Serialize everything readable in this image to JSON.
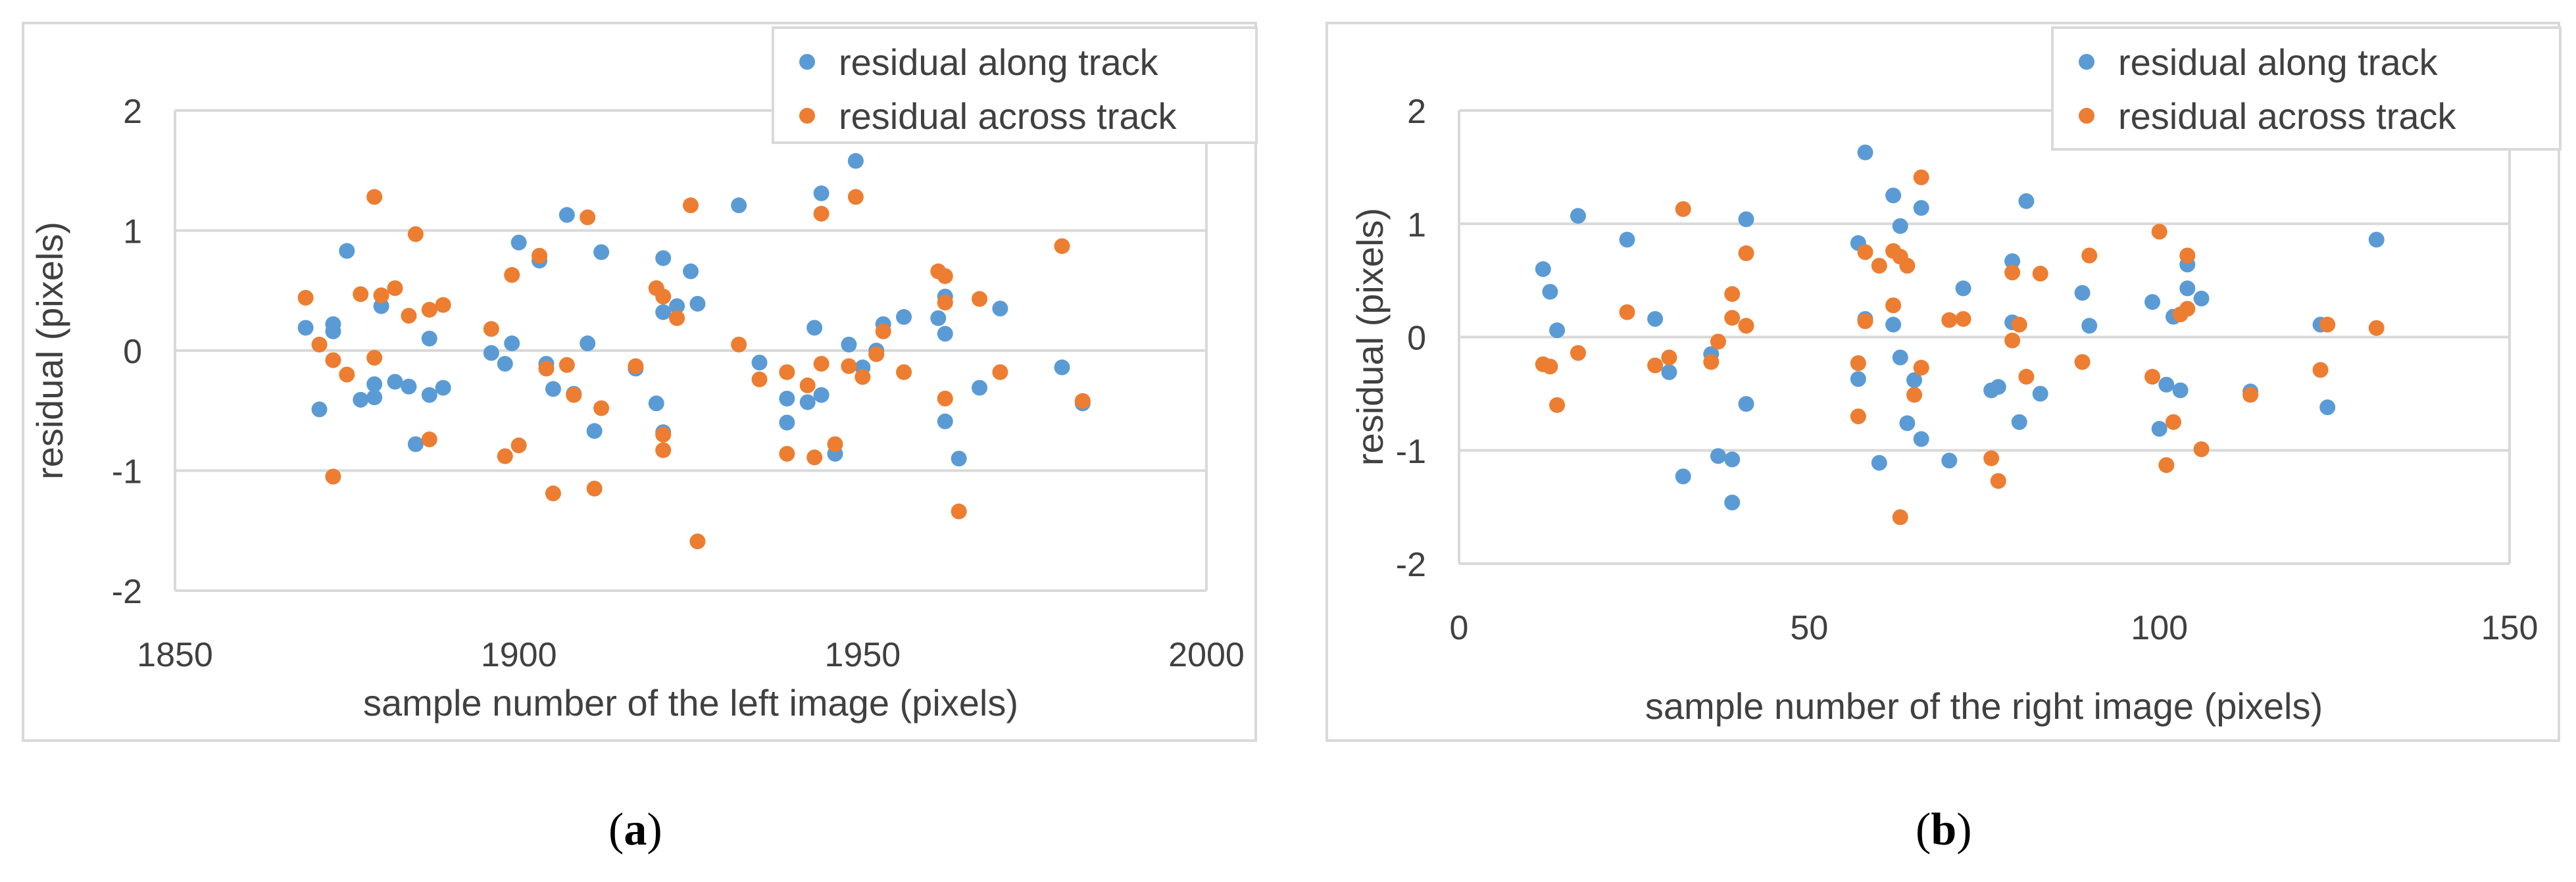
{
  "captions": {
    "a_letter": "a",
    "b_letter": "b"
  },
  "colors": {
    "along": "#5b9bd5",
    "across": "#ed7d31",
    "grid": "#d9d9d9",
    "text": "#404040"
  },
  "chart_data": [
    {
      "type": "scatter",
      "panel": "a",
      "xlabel": "sample number of the left image (pixels)",
      "ylabel": "residual (pixels)",
      "xlim": [
        1850,
        2000
      ],
      "ylim": [
        -2,
        2
      ],
      "xticks": [
        1850,
        1900,
        1950,
        2000
      ],
      "xtick_labels": [
        "1850",
        "1900",
        "1950",
        "2000"
      ],
      "yticks": [
        -2,
        -1,
        0,
        1,
        2
      ],
      "ytick_labels": [
        "-2",
        "-1",
        "0",
        "1",
        "2"
      ],
      "grid": true,
      "legend_position": "top-right",
      "series": [
        {
          "name": "residual along track",
          "points": [
            [
              1869,
              0.19
            ],
            [
              1871,
              -0.49
            ],
            [
              1873,
              0.22
            ],
            [
              1873,
              0.16
            ],
            [
              1875,
              0.83
            ],
            [
              1877,
              -0.41
            ],
            [
              1879,
              -0.28
            ],
            [
              1879,
              -0.39
            ],
            [
              1880,
              0.37
            ],
            [
              1882,
              -0.26
            ],
            [
              1884,
              -0.3
            ],
            [
              1885,
              -0.78
            ],
            [
              1887,
              0.1
            ],
            [
              1887,
              -0.37
            ],
            [
              1889,
              -0.31
            ],
            [
              1896,
              -0.02
            ],
            [
              1898,
              -0.11
            ],
            [
              1899,
              0.06
            ],
            [
              1900,
              0.9
            ],
            [
              1903,
              0.75
            ],
            [
              1904,
              -0.11
            ],
            [
              1905,
              -0.32
            ],
            [
              1907,
              1.13
            ],
            [
              1908,
              -0.36
            ],
            [
              1910,
              0.06
            ],
            [
              1911,
              -0.67
            ],
            [
              1912,
              0.82
            ],
            [
              1917,
              -0.15
            ],
            [
              1920,
              -0.44
            ],
            [
              1921,
              0.32
            ],
            [
              1921,
              0.77
            ],
            [
              1921,
              -0.68
            ],
            [
              1923,
              0.37
            ],
            [
              1925,
              0.66
            ],
            [
              1926,
              0.39
            ],
            [
              1932,
              1.21
            ],
            [
              1935,
              -0.1
            ],
            [
              1939,
              -0.6
            ],
            [
              1939,
              -0.4
            ],
            [
              1942,
              -0.43
            ],
            [
              1943,
              0.19
            ],
            [
              1944,
              1.31
            ],
            [
              1944,
              -0.37
            ],
            [
              1946,
              -0.86
            ],
            [
              1948,
              0.05
            ],
            [
              1949,
              1.58
            ],
            [
              1950,
              -0.14
            ],
            [
              1952,
              0.0
            ],
            [
              1953,
              0.22
            ],
            [
              1956,
              0.28
            ],
            [
              1961,
              0.27
            ],
            [
              1962,
              0.45
            ],
            [
              1962,
              0.14
            ],
            [
              1962,
              -0.59
            ],
            [
              1964,
              -0.9
            ],
            [
              1967,
              -0.31
            ],
            [
              1970,
              0.35
            ],
            [
              1979,
              -0.14
            ],
            [
              1982,
              -0.44
            ]
          ]
        },
        {
          "name": "residual across track",
          "points": [
            [
              1869,
              0.44
            ],
            [
              1871,
              0.05
            ],
            [
              1873,
              -0.08
            ],
            [
              1873,
              -1.05
            ],
            [
              1875,
              -0.2
            ],
            [
              1877,
              0.47
            ],
            [
              1879,
              1.28
            ],
            [
              1879,
              -0.06
            ],
            [
              1880,
              0.46
            ],
            [
              1882,
              0.52
            ],
            [
              1884,
              0.29
            ],
            [
              1885,
              0.97
            ],
            [
              1887,
              0.34
            ],
            [
              1887,
              -0.74
            ],
            [
              1889,
              0.38
            ],
            [
              1896,
              0.18
            ],
            [
              1898,
              -0.88
            ],
            [
              1899,
              0.63
            ],
            [
              1900,
              -0.79
            ],
            [
              1903,
              0.79
            ],
            [
              1904,
              -0.15
            ],
            [
              1905,
              -1.19
            ],
            [
              1907,
              -0.12
            ],
            [
              1908,
              -0.37
            ],
            [
              1910,
              1.11
            ],
            [
              1911,
              -1.15
            ],
            [
              1912,
              -0.48
            ],
            [
              1917,
              -0.13
            ],
            [
              1920,
              0.52
            ],
            [
              1921,
              0.45
            ],
            [
              1921,
              -0.7
            ],
            [
              1921,
              -0.83
            ],
            [
              1923,
              0.27
            ],
            [
              1925,
              1.21
            ],
            [
              1926,
              -1.59
            ],
            [
              1932,
              0.05
            ],
            [
              1935,
              -0.24
            ],
            [
              1939,
              -0.18
            ],
            [
              1939,
              -0.86
            ],
            [
              1942,
              -0.29
            ],
            [
              1943,
              -0.89
            ],
            [
              1944,
              1.14
            ],
            [
              1944,
              -0.11
            ],
            [
              1946,
              -0.78
            ],
            [
              1948,
              -0.13
            ],
            [
              1949,
              1.28
            ],
            [
              1950,
              -0.22
            ],
            [
              1952,
              -0.03
            ],
            [
              1953,
              0.16
            ],
            [
              1956,
              -0.18
            ],
            [
              1961,
              0.66
            ],
            [
              1962,
              0.62
            ],
            [
              1962,
              0.4
            ],
            [
              1962,
              -0.4
            ],
            [
              1964,
              -1.34
            ],
            [
              1967,
              0.43
            ],
            [
              1970,
              -0.18
            ],
            [
              1979,
              0.87
            ],
            [
              1982,
              -0.42
            ]
          ]
        }
      ]
    },
    {
      "type": "scatter",
      "panel": "b",
      "xlabel": "sample number of the right image (pixels)",
      "ylabel": "residual (pixels)",
      "xlim": [
        0,
        150
      ],
      "ylim": [
        -2,
        2
      ],
      "xticks": [
        0,
        50,
        100,
        150
      ],
      "xtick_labels": [
        "0",
        "50",
        "100",
        "150"
      ],
      "yticks": [
        -2,
        -1,
        0,
        1,
        2
      ],
      "ytick_labels": [
        "-2",
        "-1",
        "0",
        "1",
        "2"
      ],
      "grid": true,
      "legend_position": "top-right",
      "series": [
        {
          "name": "residual along track",
          "points": [
            [
              12,
              0.6
            ],
            [
              13,
              0.4
            ],
            [
              14,
              0.06
            ],
            [
              17,
              1.07
            ],
            [
              24,
              0.86
            ],
            [
              28,
              0.16
            ],
            [
              30,
              -0.31
            ],
            [
              32,
              -1.23
            ],
            [
              36,
              -0.15
            ],
            [
              37,
              -1.05
            ],
            [
              39,
              -1.08
            ],
            [
              39,
              -1.46
            ],
            [
              41,
              1.04
            ],
            [
              41,
              -0.59
            ],
            [
              57,
              -0.37
            ],
            [
              57,
              0.83
            ],
            [
              58,
              1.63
            ],
            [
              58,
              0.16
            ],
            [
              60,
              -1.11
            ],
            [
              62,
              0.11
            ],
            [
              62,
              1.25
            ],
            [
              63,
              -0.18
            ],
            [
              63,
              0.98
            ],
            [
              64,
              -0.76
            ],
            [
              65,
              -0.38
            ],
            [
              66,
              1.14
            ],
            [
              66,
              -0.9
            ],
            [
              70,
              -1.09
            ],
            [
              72,
              0.43
            ],
            [
              76,
              -0.47
            ],
            [
              77,
              -0.44
            ],
            [
              79,
              0.13
            ],
            [
              79,
              0.67
            ],
            [
              80,
              -0.75
            ],
            [
              81,
              1.2
            ],
            [
              83,
              -0.5
            ],
            [
              89,
              0.39
            ],
            [
              90,
              0.1
            ],
            [
              99,
              0.31
            ],
            [
              100,
              -0.81
            ],
            [
              101,
              -0.42
            ],
            [
              102,
              0.18
            ],
            [
              103,
              -0.47
            ],
            [
              104,
              0.64
            ],
            [
              104,
              0.43
            ],
            [
              106,
              0.34
            ],
            [
              113,
              -0.48
            ],
            [
              123,
              0.11
            ],
            [
              124,
              -0.62
            ],
            [
              131,
              0.86
            ]
          ]
        },
        {
          "name": "residual across track",
          "points": [
            [
              12,
              -0.24
            ],
            [
              13,
              -0.26
            ],
            [
              14,
              -0.6
            ],
            [
              17,
              -0.14
            ],
            [
              24,
              0.22
            ],
            [
              28,
              -0.25
            ],
            [
              30,
              -0.18
            ],
            [
              32,
              1.13
            ],
            [
              36,
              -0.22
            ],
            [
              37,
              -0.04
            ],
            [
              39,
              0.38
            ],
            [
              39,
              0.17
            ],
            [
              41,
              0.1
            ],
            [
              41,
              0.74
            ],
            [
              57,
              -0.23
            ],
            [
              57,
              -0.7
            ],
            [
              58,
              0.75
            ],
            [
              58,
              0.14
            ],
            [
              60,
              0.63
            ],
            [
              62,
              0.28
            ],
            [
              62,
              0.76
            ],
            [
              63,
              -1.59
            ],
            [
              63,
              0.71
            ],
            [
              64,
              0.63
            ],
            [
              65,
              -0.51
            ],
            [
              66,
              1.41
            ],
            [
              66,
              -0.27
            ],
            [
              70,
              0.15
            ],
            [
              72,
              0.16
            ],
            [
              76,
              -1.07
            ],
            [
              77,
              -1.27
            ],
            [
              79,
              -0.03
            ],
            [
              79,
              0.57
            ],
            [
              80,
              0.11
            ],
            [
              81,
              -0.35
            ],
            [
              83,
              0.56
            ],
            [
              89,
              -0.22
            ],
            [
              90,
              0.72
            ],
            [
              99,
              -0.35
            ],
            [
              100,
              0.93
            ],
            [
              101,
              -1.13
            ],
            [
              102,
              -0.75
            ],
            [
              103,
              0.2
            ],
            [
              104,
              0.72
            ],
            [
              104,
              0.25
            ],
            [
              106,
              -0.99
            ],
            [
              113,
              -0.51
            ],
            [
              123,
              -0.29
            ],
            [
              124,
              0.11
            ],
            [
              131,
              0.08
            ]
          ]
        }
      ]
    }
  ]
}
